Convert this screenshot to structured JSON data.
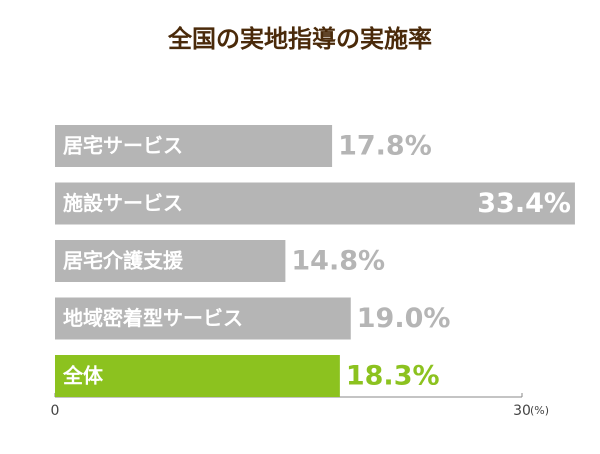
{
  "chart_data": {
    "type": "bar",
    "orientation": "horizontal",
    "title": "全国の実地指導の実施率",
    "categories": [
      "居宅サービス",
      "施設サービス",
      "居宅介護支援",
      "地域密着型サービス",
      "全体"
    ],
    "values": [
      17.8,
      33.4,
      14.8,
      19.0,
      18.3
    ],
    "value_labels": [
      "17.8%",
      "33.4%",
      "14.8%",
      "19.0%",
      "18.3%"
    ],
    "colors": [
      "#b5b5b5",
      "#b5b5b5",
      "#b5b5b5",
      "#b5b5b5",
      "#8cc21f"
    ],
    "xlim": [
      0,
      30
    ],
    "xticks": [
      0,
      30
    ],
    "x_unit": "(%)"
  }
}
